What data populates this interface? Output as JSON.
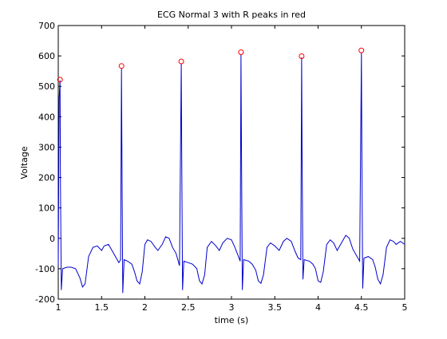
{
  "chart_data": {
    "type": "line",
    "title": "ECG Normal 3 with R peaks in red",
    "xlabel": "time (s)",
    "ylabel": "Voltage",
    "xlim": [
      1,
      5
    ],
    "ylim": [
      -200,
      700
    ],
    "xticks": [
      1,
      1.5,
      2,
      2.5,
      3,
      3.5,
      4,
      4.5,
      5
    ],
    "xtick_labels": [
      "1",
      "1.5",
      "2",
      "2.5",
      "3",
      "3.5",
      "4",
      "4.5",
      "5"
    ],
    "yticks": [
      -200,
      -100,
      0,
      100,
      200,
      300,
      400,
      500,
      600,
      700
    ],
    "ytick_labels": [
      "-200",
      "-100",
      "0",
      "100",
      "200",
      "300",
      "400",
      "500",
      "600",
      "700"
    ],
    "grid": false,
    "legend": "none",
    "line_color": "#0000cc",
    "marker_color": "#ff0000",
    "series": [
      {
        "values": [
          [
            1.0,
            -90
          ],
          [
            1.01,
            460
          ],
          [
            1.02,
            520
          ],
          [
            1.025,
            200
          ],
          [
            1.035,
            -170
          ],
          [
            1.05,
            -100
          ],
          [
            1.1,
            -95
          ],
          [
            1.15,
            -95
          ],
          [
            1.2,
            -100
          ],
          [
            1.25,
            -130
          ],
          [
            1.28,
            -160
          ],
          [
            1.31,
            -150
          ],
          [
            1.35,
            -60
          ],
          [
            1.4,
            -30
          ],
          [
            1.45,
            -25
          ],
          [
            1.5,
            -40
          ],
          [
            1.53,
            -25
          ],
          [
            1.58,
            -20
          ],
          [
            1.62,
            -40
          ],
          [
            1.66,
            -60
          ],
          [
            1.7,
            -80
          ],
          [
            1.72,
            -70
          ],
          [
            1.73,
            560
          ],
          [
            1.735,
            300
          ],
          [
            1.745,
            -180
          ],
          [
            1.76,
            -70
          ],
          [
            1.8,
            -75
          ],
          [
            1.85,
            -85
          ],
          [
            1.88,
            -110
          ],
          [
            1.91,
            -140
          ],
          [
            1.94,
            -150
          ],
          [
            1.97,
            -110
          ],
          [
            2.0,
            -20
          ],
          [
            2.03,
            -5
          ],
          [
            2.07,
            -10
          ],
          [
            2.12,
            -30
          ],
          [
            2.15,
            -40
          ],
          [
            2.2,
            -20
          ],
          [
            2.24,
            5
          ],
          [
            2.28,
            0
          ],
          [
            2.32,
            -30
          ],
          [
            2.36,
            -50
          ],
          [
            2.4,
            -90
          ],
          [
            2.42,
            575
          ],
          [
            2.425,
            300
          ],
          [
            2.435,
            -170
          ],
          [
            2.45,
            -75
          ],
          [
            2.5,
            -80
          ],
          [
            2.55,
            -85
          ],
          [
            2.6,
            -100
          ],
          [
            2.63,
            -140
          ],
          [
            2.66,
            -150
          ],
          [
            2.69,
            -120
          ],
          [
            2.72,
            -30
          ],
          [
            2.77,
            -10
          ],
          [
            2.82,
            -25
          ],
          [
            2.86,
            -40
          ],
          [
            2.9,
            -15
          ],
          [
            2.95,
            0
          ],
          [
            3.0,
            -5
          ],
          [
            3.04,
            -30
          ],
          [
            3.08,
            -60
          ],
          [
            3.1,
            -75
          ],
          [
            3.11,
            605
          ],
          [
            3.115,
            300
          ],
          [
            3.125,
            -170
          ],
          [
            3.14,
            -70
          ],
          [
            3.2,
            -75
          ],
          [
            3.24,
            -85
          ],
          [
            3.28,
            -105
          ],
          [
            3.31,
            -140
          ],
          [
            3.34,
            -148
          ],
          [
            3.37,
            -120
          ],
          [
            3.41,
            -30
          ],
          [
            3.45,
            -15
          ],
          [
            3.5,
            -25
          ],
          [
            3.55,
            -40
          ],
          [
            3.6,
            -10
          ],
          [
            3.64,
            0
          ],
          [
            3.69,
            -10
          ],
          [
            3.73,
            -40
          ],
          [
            3.77,
            -65
          ],
          [
            3.8,
            -70
          ],
          [
            3.81,
            595
          ],
          [
            3.815,
            300
          ],
          [
            3.825,
            -135
          ],
          [
            3.84,
            -70
          ],
          [
            3.9,
            -75
          ],
          [
            3.94,
            -85
          ],
          [
            3.97,
            -100
          ],
          [
            4.0,
            -140
          ],
          [
            4.03,
            -145
          ],
          [
            4.06,
            -110
          ],
          [
            4.1,
            -20
          ],
          [
            4.14,
            -5
          ],
          [
            4.18,
            -15
          ],
          [
            4.22,
            -40
          ],
          [
            4.27,
            -15
          ],
          [
            4.32,
            10
          ],
          [
            4.36,
            0
          ],
          [
            4.4,
            -35
          ],
          [
            4.45,
            -60
          ],
          [
            4.48,
            -75
          ],
          [
            4.5,
            610
          ],
          [
            4.505,
            300
          ],
          [
            4.515,
            -165
          ],
          [
            4.53,
            -65
          ],
          [
            4.58,
            -60
          ],
          [
            4.63,
            -70
          ],
          [
            4.66,
            -95
          ],
          [
            4.69,
            -135
          ],
          [
            4.72,
            -150
          ],
          [
            4.75,
            -120
          ],
          [
            4.79,
            -30
          ],
          [
            4.83,
            -5
          ],
          [
            4.87,
            -10
          ],
          [
            4.9,
            -20
          ],
          [
            4.95,
            -10
          ],
          [
            5.0,
            -20
          ]
        ]
      },
      {
        "type": "scatter",
        "values": [
          [
            1.02,
            522
          ],
          [
            1.73,
            567
          ],
          [
            2.42,
            582
          ],
          [
            3.11,
            612
          ],
          [
            3.81,
            599
          ],
          [
            4.5,
            618
          ]
        ]
      }
    ]
  }
}
